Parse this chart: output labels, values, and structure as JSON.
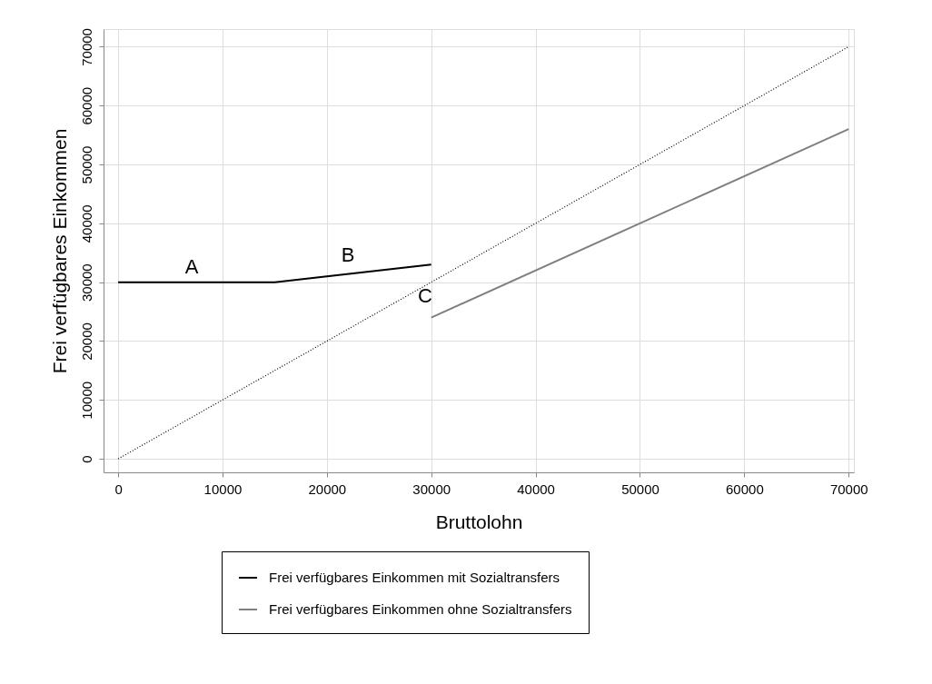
{
  "chart_data": {
    "type": "line",
    "xlabel": "Bruttolohn",
    "ylabel": "Frei verfügbares Einkommen",
    "xlim": [
      -1400,
      70500
    ],
    "ylim": [
      -2300,
      73000
    ],
    "xticks": [
      0,
      10000,
      20000,
      30000,
      40000,
      50000,
      60000,
      70000
    ],
    "yticks": [
      0,
      10000,
      20000,
      30000,
      40000,
      50000,
      60000,
      70000
    ],
    "grid": true,
    "legend": "bottom",
    "marker": "none",
    "line_style": "solid",
    "series": [
      {
        "name": "Frei verfügbares Einkommen mit Sozialtransfers",
        "color": "#000000",
        "x": [
          0,
          15000,
          30000
        ],
        "values": [
          30000,
          30000,
          33000
        ]
      },
      {
        "name": "Frei verfügbares Einkommen ohne Sozialtransfers",
        "color": "#808080",
        "x": [
          30000,
          70000
        ],
        "values": [
          24000,
          56000
        ]
      },
      {
        "color": "#000000",
        "line_style": "dotted",
        "x": [
          0,
          70000
        ],
        "values": [
          0,
          70000
        ]
      }
    ],
    "annotations": [
      "A",
      "B",
      "C"
    ]
  }
}
